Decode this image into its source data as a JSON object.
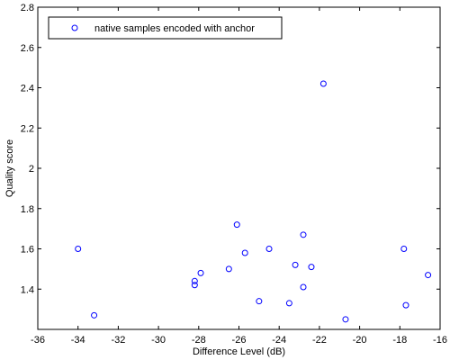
{
  "chart_data": {
    "type": "scatter",
    "title": "",
    "xlabel": "Difference Level (dB)",
    "ylabel": "Quality score",
    "xlim": [
      -36,
      -16
    ],
    "ylim": [
      1.2,
      2.8
    ],
    "xticks": [
      -36,
      -34,
      -32,
      -30,
      -28,
      -26,
      -24,
      -22,
      -20,
      -18,
      -16
    ],
    "yticks": [
      1.4,
      1.6,
      1.8,
      2,
      2.2,
      2.4,
      2.6,
      2.8
    ],
    "grid": false,
    "legend_position": "top-left",
    "marker": "open-circle",
    "marker_color": "#0000ff",
    "series": [
      {
        "name": "native samples encoded with anchor",
        "points": [
          {
            "x": -34.0,
            "y": 1.6
          },
          {
            "x": -33.2,
            "y": 1.27
          },
          {
            "x": -28.2,
            "y": 1.42
          },
          {
            "x": -28.2,
            "y": 1.44
          },
          {
            "x": -27.9,
            "y": 1.48
          },
          {
            "x": -26.5,
            "y": 1.5
          },
          {
            "x": -26.1,
            "y": 1.72
          },
          {
            "x": -25.7,
            "y": 1.58
          },
          {
            "x": -25.0,
            "y": 1.34
          },
          {
            "x": -24.5,
            "y": 1.6
          },
          {
            "x": -23.5,
            "y": 1.33
          },
          {
            "x": -23.2,
            "y": 1.52
          },
          {
            "x": -22.8,
            "y": 1.67
          },
          {
            "x": -22.8,
            "y": 1.41
          },
          {
            "x": -22.4,
            "y": 1.51
          },
          {
            "x": -21.8,
            "y": 2.42
          },
          {
            "x": -20.7,
            "y": 1.25
          },
          {
            "x": -17.8,
            "y": 1.6
          },
          {
            "x": -17.7,
            "y": 1.32
          },
          {
            "x": -16.6,
            "y": 1.47
          }
        ]
      }
    ]
  }
}
